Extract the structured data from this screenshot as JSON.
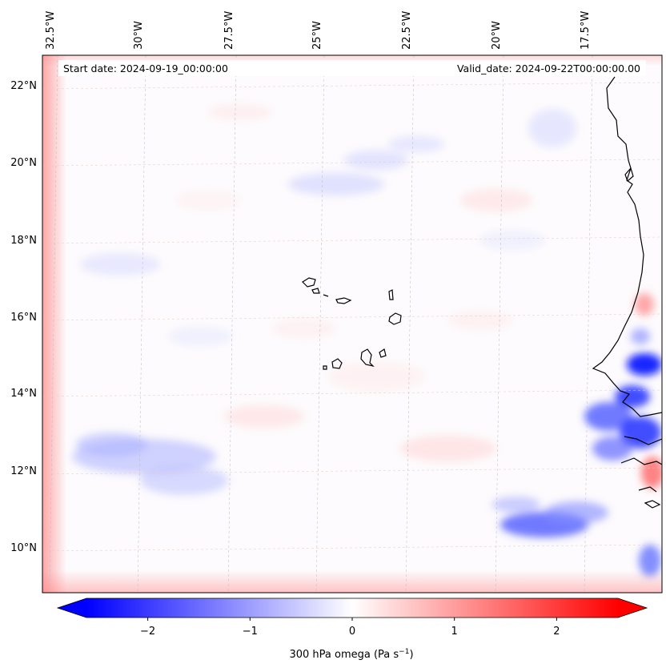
{
  "map": {
    "start_date": "Start date: 2024-09-19_00:00:00",
    "valid_date": "Valid_date: 2024-09-22T00:00:00.00",
    "lon_labels": [
      "32.5°W",
      "30°W",
      "27.5°W",
      "25°W",
      "22.5°W",
      "20°W",
      "17.5°W"
    ],
    "lat_labels": [
      "22°N",
      "20°N",
      "18°N",
      "16°N",
      "14°N",
      "12°N",
      "10°N"
    ],
    "field": "300 hPa omega",
    "units": "Pa s⁻¹"
  },
  "colorbar": {
    "ticks": [
      "−2",
      "−1",
      "0",
      "1",
      "2"
    ],
    "tick_values": [
      -2,
      -1,
      0,
      1,
      2
    ],
    "range": [
      -2.6,
      2.6
    ],
    "label": "300 hPa omega (Pa s",
    "label_sup": "−1",
    "label_end": ")",
    "colors": {
      "negative": "#0000ff",
      "zero": "#ffffff",
      "positive": "#ff0000"
    }
  }
}
